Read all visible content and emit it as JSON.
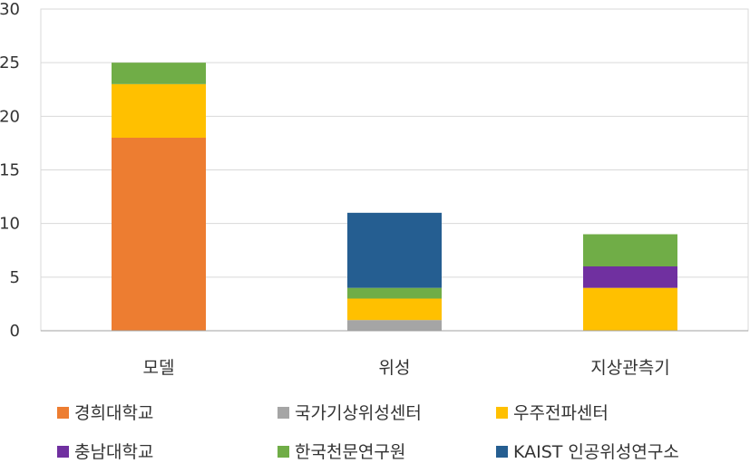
{
  "chart_data": {
    "type": "bar",
    "stacked": true,
    "categories": [
      "모델",
      "위성",
      "지상관측기"
    ],
    "series": [
      {
        "name": "경희대학교",
        "color": "#ED7D31",
        "values": [
          18,
          0,
          0
        ]
      },
      {
        "name": "국가기상위성센터",
        "color": "#A5A5A5",
        "values": [
          0,
          1,
          0
        ]
      },
      {
        "name": "우주전파센터",
        "color": "#FFC000",
        "values": [
          5,
          2,
          4
        ]
      },
      {
        "name": "충남대학교",
        "color": "#7030A0",
        "values": [
          0,
          0,
          2
        ]
      },
      {
        "name": "한국천문연구원",
        "color": "#70AD47",
        "values": [
          2,
          1,
          3
        ]
      },
      {
        "name": "KAIST 인공위성연구소",
        "color": "#255E91",
        "values": [
          0,
          7,
          0
        ]
      }
    ],
    "yticks": [
      "0",
      "5",
      "10",
      "15",
      "20",
      "25",
      "30"
    ],
    "ylim": [
      0,
      30
    ],
    "grid": true,
    "legend_position": "bottom",
    "title": "",
    "xlabel": "",
    "ylabel": ""
  }
}
